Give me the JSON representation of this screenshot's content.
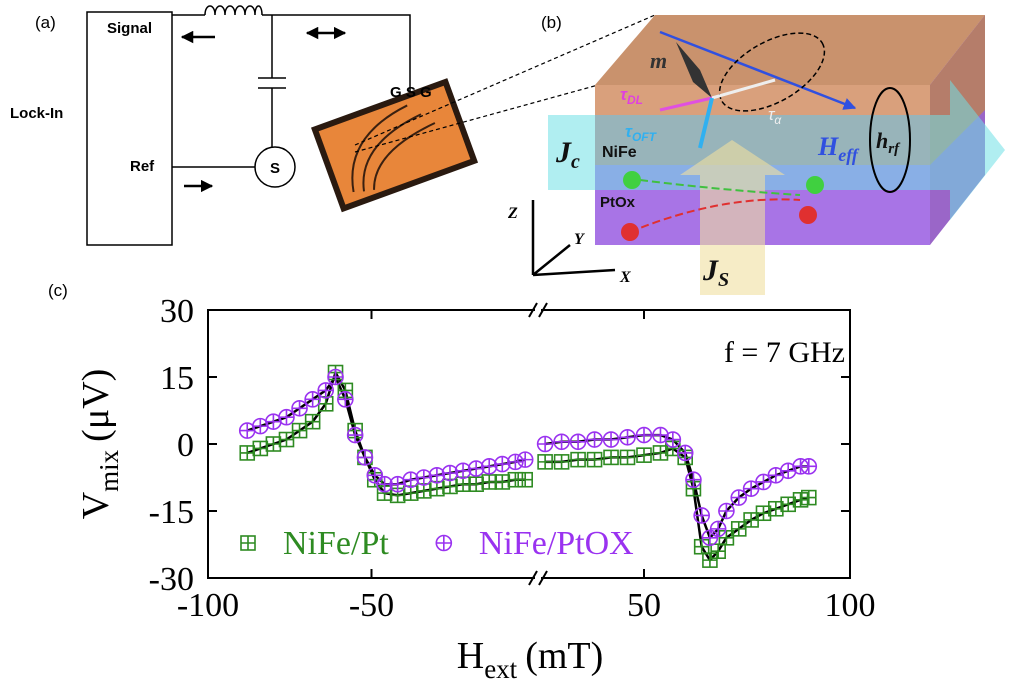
{
  "panel_a": {
    "label": "(a)",
    "lock_in": "Lock-In",
    "signal": "Signal",
    "ref": "Ref",
    "source": "S",
    "probe": "G S G"
  },
  "panel_b": {
    "label": "(b)",
    "m": "m",
    "tau_dl": {
      "main": "τ",
      "sub": "DL"
    },
    "tau_oft": {
      "main": "τ",
      "sub": "OFT"
    },
    "tau_alpha": {
      "main": "τ",
      "sub": "α"
    },
    "jc": {
      "main": "J",
      "sub": "c"
    },
    "nife": "NiFe",
    "heff": {
      "main": "H",
      "sub": "eff"
    },
    "hrf": {
      "main": "h",
      "sub": "rf"
    },
    "ptox": "PtOx",
    "z": "Z",
    "y": "Y",
    "x": "X",
    "js": {
      "main": "J",
      "sub": "S"
    }
  },
  "chart_data": {
    "type": "scatter",
    "panel_label": "(c)",
    "annotation": "f = 7 GHz",
    "xlabel": {
      "main": "H",
      "sub": "ext",
      "unit": "(mT)"
    },
    "ylabel": {
      "main": "V",
      "sub": "mix",
      "unit": "(μV)"
    },
    "xlim": [
      -100,
      100
    ],
    "xbreak": [
      0,
      25
    ],
    "xticks": [
      -100,
      -50,
      50,
      100
    ],
    "ylim": [
      -30,
      30
    ],
    "yticks": [
      30,
      15,
      0,
      -15,
      -30
    ],
    "legend": "lower left",
    "line_color": "#000000",
    "x": [
      -88,
      -84,
      -80,
      -76,
      -72,
      -68,
      -64,
      -61,
      -58,
      -55,
      -52,
      -49,
      -46,
      -42,
      -38,
      -34,
      -30,
      -26,
      -22,
      -18,
      -14,
      -10,
      -6,
      -3,
      26,
      30,
      34,
      38,
      42,
      46,
      50,
      54,
      57,
      60,
      62,
      64,
      66,
      68,
      70,
      73,
      76,
      79,
      82,
      85,
      88,
      90
    ],
    "series": [
      {
        "name": "NiFe/Pt",
        "color": "#2e8b22",
        "marker": "square",
        "values": [
          -2,
          -1,
          0,
          1,
          3,
          5,
          9,
          16,
          12,
          3,
          -3,
          -8,
          -11,
          -11.5,
          -11,
          -10.5,
          -10,
          -9.5,
          -9,
          -9,
          -8.5,
          -8.5,
          -8,
          -8,
          -4,
          -4,
          -3.5,
          -3.5,
          -3,
          -3,
          -2.5,
          -2,
          -1,
          -3,
          -10,
          -23,
          -26,
          -24,
          -21,
          -19,
          -17,
          -15.5,
          -14.5,
          -13.5,
          -12.5,
          -12
        ]
      },
      {
        "name": "NiFe/PtOX",
        "color": "#9a32f0",
        "marker": "circle",
        "values": [
          3,
          4,
          5,
          6,
          8,
          10,
          12,
          15,
          10,
          2,
          -3,
          -7,
          -9,
          -9,
          -8,
          -7.5,
          -7,
          -6.5,
          -6,
          -5.5,
          -5,
          -4.5,
          -4,
          -3.5,
          0,
          0.5,
          0.5,
          1,
          1,
          1.5,
          2,
          2,
          1,
          -2,
          -8,
          -16,
          -21,
          -19,
          -15,
          -12,
          -10,
          -8.5,
          -7,
          -6,
          -5,
          -5
        ]
      }
    ]
  }
}
